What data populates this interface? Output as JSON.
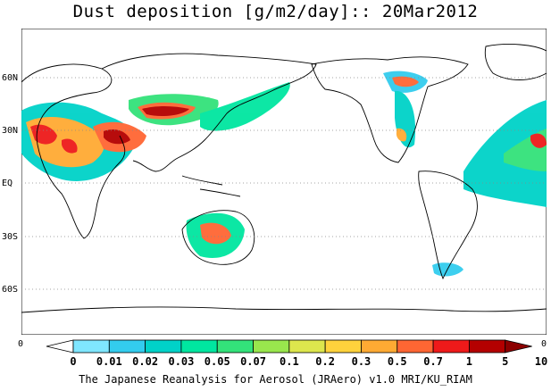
{
  "title": "Dust deposition [g/m2/day]:: 20Mar2012",
  "footer": "The Japanese Reanalysis for Aerosol (JRAero) v1.0 MRI/KU_RIAM",
  "lat_labels": [
    "60N",
    "30N",
    "EQ",
    "30S",
    "60S"
  ],
  "lon_edge_labels": {
    "left": "0",
    "right": "0"
  },
  "colorbar": {
    "ticks": [
      "0",
      "0.01",
      "0.02",
      "0.03",
      "0.05",
      "0.07",
      "0.1",
      "0.2",
      "0.3",
      "0.5",
      "0.7",
      "1",
      "5",
      "10"
    ],
    "colors": [
      "#ffffff",
      "#7fe6ff",
      "#33ccee",
      "#00d2c8",
      "#00e6a0",
      "#33e27a",
      "#99e64d",
      "#dde64d",
      "#ffd23c",
      "#ffaa33",
      "#ff6633",
      "#ee1a1a",
      "#b40000",
      "#8c0000"
    ]
  },
  "map": {
    "grid_lines": "dotted",
    "land_outline_color": "#000000",
    "ocean_color": "#ffffff"
  }
}
